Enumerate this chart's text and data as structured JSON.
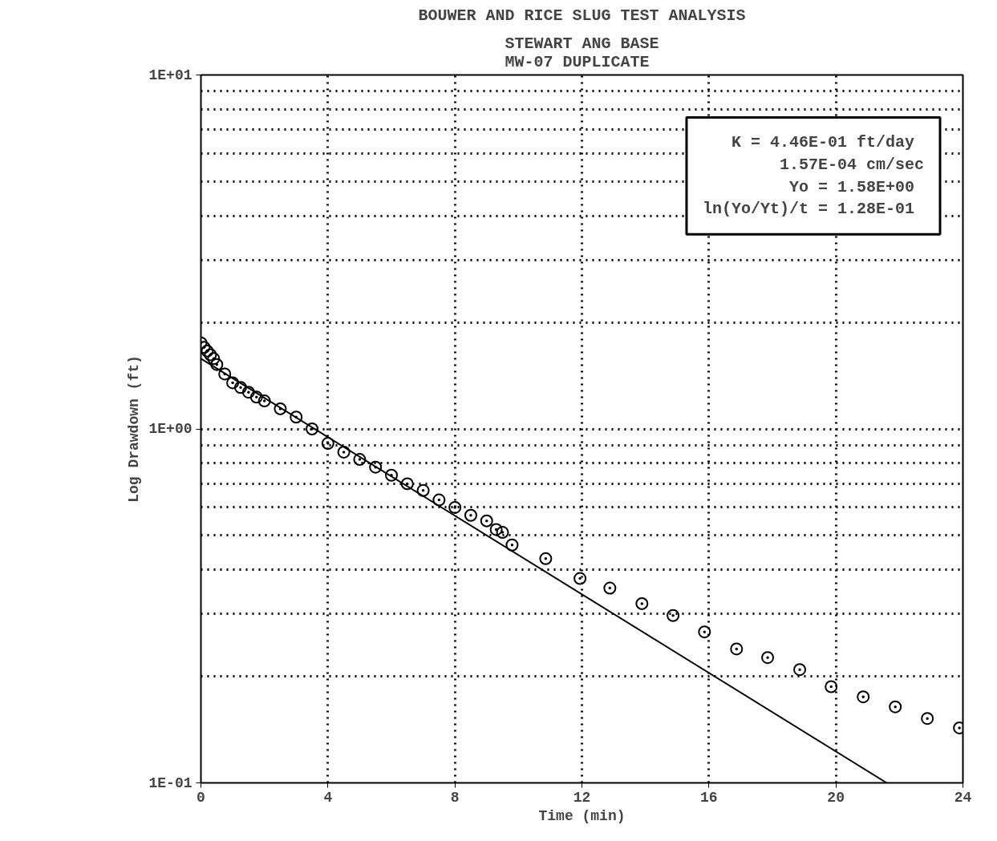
{
  "chart_data": {
    "type": "scatter",
    "title": "BOUWER AND RICE SLUG TEST ANALYSIS",
    "subtitle": "STEWART ANG BASE\nMW-07 DUPLICATE",
    "xlabel": "Time (min)",
    "ylabel": "Log Drawdown (ft)",
    "log": "y",
    "grid": true,
    "xlim": [
      0,
      24
    ],
    "xticks": [
      0,
      4,
      8,
      12,
      16,
      20,
      24
    ],
    "ylim": [
      0.1,
      10
    ],
    "yticks": [
      {
        "value": 0.1,
        "label": "1E-01"
      },
      {
        "value": 1,
        "label": "1E+00"
      },
      {
        "value": 10,
        "label": "1E+01"
      }
    ],
    "annotations": [
      "K =  4.46E-01 ft/day",
      "1.57E-04 cm/sec",
      "Yo =  1.58E+00",
      "ln(Yo/Yt)/t =  1.28E-01"
    ],
    "series": [
      {
        "marker": "circle",
        "color": "#000000",
        "x": [
          0,
          0.1,
          0.2,
          0.3,
          0.4,
          0.5,
          0.75,
          1.0,
          1.25,
          1.5,
          1.75,
          2.0,
          2.5,
          3.0,
          3.5,
          4.0,
          4.5,
          5.0,
          5.5,
          6.0,
          6.5,
          7.0,
          7.5,
          8.0,
          8.5,
          9.0,
          9.3,
          9.5,
          9.8,
          10.86,
          11.94,
          12.88,
          13.89,
          14.87,
          15.86,
          16.87,
          17.85,
          18.86,
          19.85,
          20.86,
          21.87,
          22.88,
          23.89
        ],
        "values": [
          1.75,
          1.7,
          1.66,
          1.62,
          1.58,
          1.52,
          1.43,
          1.35,
          1.31,
          1.27,
          1.23,
          1.2,
          1.14,
          1.08,
          1.0,
          0.91,
          0.86,
          0.82,
          0.78,
          0.74,
          0.7,
          0.67,
          0.63,
          0.6,
          0.57,
          0.55,
          0.52,
          0.51,
          0.47,
          0.43,
          0.378,
          0.355,
          0.321,
          0.297,
          0.267,
          0.239,
          0.226,
          0.209,
          0.187,
          0.175,
          0.164,
          0.152,
          0.143
        ]
      },
      {
        "type": "line",
        "color": "#000000",
        "x": [
          0,
          21.6
        ],
        "values": [
          1.58,
          0.1
        ]
      }
    ]
  }
}
